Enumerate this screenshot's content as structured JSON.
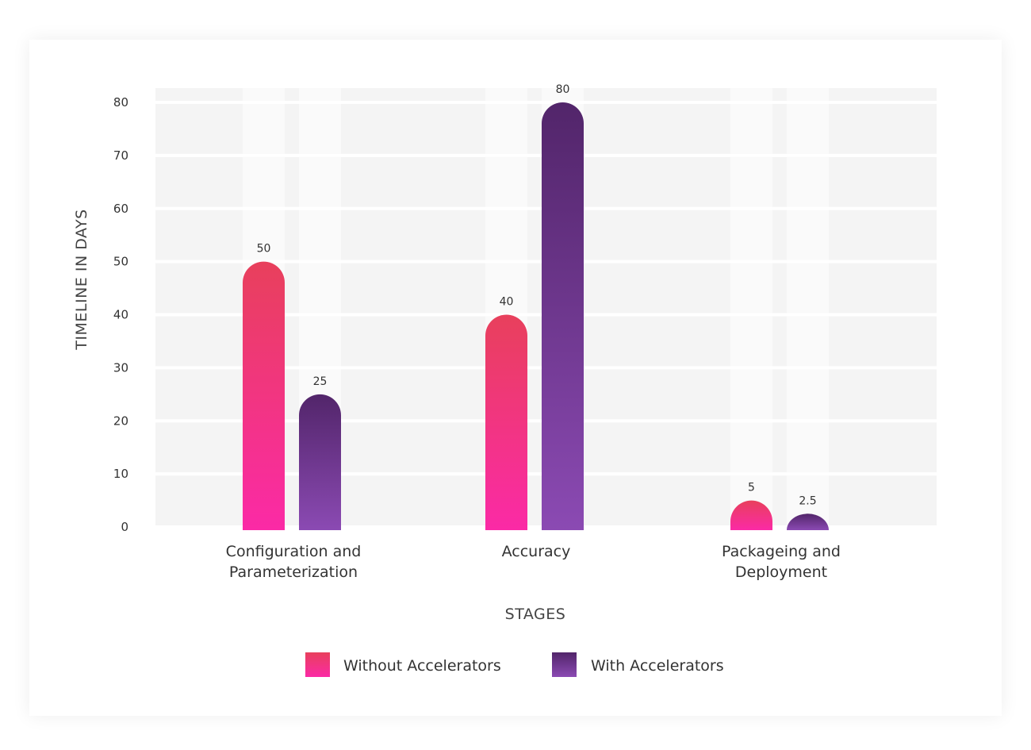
{
  "chart_data": {
    "type": "bar",
    "categories": [
      [
        "Configuration and",
        "Parameterization"
      ],
      [
        "Accuracy"
      ],
      [
        "Packageing and",
        "Deployment"
      ]
    ],
    "series": [
      {
        "name": "Without Accelerators",
        "values": [
          50,
          40,
          5
        ],
        "labels": [
          "50",
          "40",
          "5"
        ],
        "color_top": "#e8405c",
        "color_bottom": "#fb2aa6"
      },
      {
        "name": "With Accelerators",
        "values": [
          25,
          80,
          2.5
        ],
        "labels": [
          "25",
          "80",
          "2.5"
        ],
        "color_top": "#52256a",
        "color_bottom": "#8b4ab3"
      }
    ],
    "xlabel": "STAGES",
    "ylabel": "TIMELINE IN DAYS",
    "ylim": [
      0,
      80
    ],
    "yticks": [
      0,
      10,
      20,
      30,
      40,
      50,
      60,
      70,
      80
    ],
    "grid": true,
    "legend": "bottom"
  }
}
